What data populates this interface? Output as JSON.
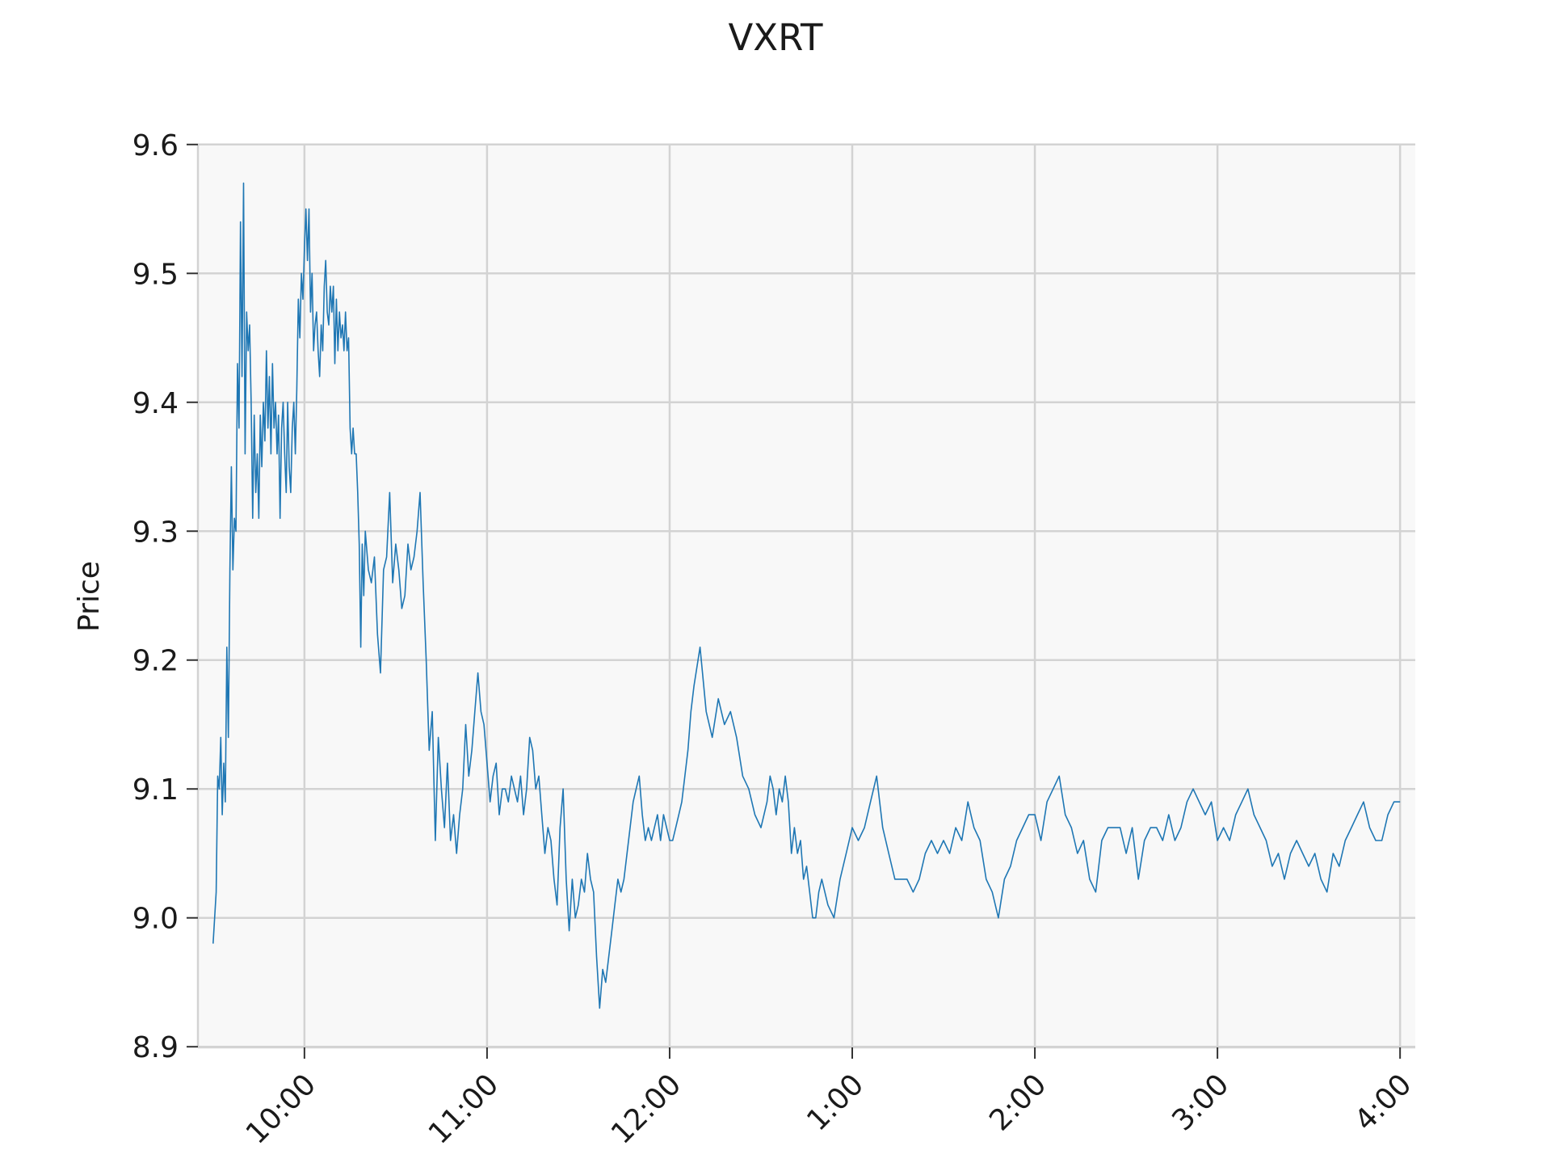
{
  "chart_data": {
    "type": "line",
    "title": "VXRT",
    "xlabel": "",
    "ylabel": "Price",
    "ylim": [
      8.9,
      9.6
    ],
    "yticks": [
      8.9,
      9.0,
      9.1,
      9.2,
      9.3,
      9.4,
      9.5,
      9.6
    ],
    "ytick_labels": [
      "8.9",
      "9.0",
      "9.1",
      "9.2",
      "9.3",
      "9.4",
      "9.5",
      "9.6"
    ],
    "x_unit": "minutes since 9:30 AM",
    "xlim": [
      -5,
      395
    ],
    "xticks": [
      30,
      90,
      150,
      210,
      270,
      330,
      390
    ],
    "xtick_labels": [
      "10:00",
      "11:00",
      "12:00",
      "1:00",
      "2:00",
      "3:00",
      "4:00"
    ],
    "grid": true,
    "colors": {
      "line": "#1f77b4",
      "plot_bg": "#f8f8f8",
      "grid": "#d3d3d3"
    },
    "series": [
      {
        "x": [
          0,
          1,
          1.5,
          2,
          2.5,
          3,
          3.5,
          4,
          4.5,
          5,
          5.5,
          6,
          6.5,
          7,
          7.5,
          8,
          8.5,
          9,
          9.5,
          10,
          10.5,
          11,
          11.5,
          12,
          12.5,
          13,
          13.5,
          14,
          14.5,
          15,
          15.5,
          16,
          16.5,
          17,
          17.5,
          18,
          18.5,
          19,
          19.5,
          20,
          20.5,
          21,
          21.5,
          22,
          22.5,
          23,
          23.5,
          24,
          24.5,
          25,
          25.5,
          26,
          26.5,
          27,
          27.5,
          28,
          28.5,
          29,
          29.5,
          30,
          30.5,
          31,
          31.5,
          32,
          32.5,
          33,
          33.5,
          34,
          34.5,
          35,
          35.5,
          36,
          36.5,
          37,
          37.5,
          38,
          38.5,
          39,
          39.5,
          40,
          40.5,
          41,
          41.5,
          42,
          42.5,
          43,
          43.5,
          44,
          44.5,
          45,
          45.5,
          46,
          46.5,
          47,
          47.5,
          48,
          48.5,
          49,
          49.5,
          50,
          51,
          52,
          53,
          54,
          55,
          56,
          57,
          58,
          59,
          60,
          61,
          62,
          63,
          64,
          65,
          66,
          67,
          68,
          69,
          70,
          71,
          72,
          73,
          74,
          75,
          76,
          77,
          78,
          79,
          80,
          81,
          82,
          83,
          84,
          85,
          86,
          87,
          88,
          89,
          90,
          91,
          92,
          93,
          94,
          95,
          96,
          97,
          98,
          99,
          100,
          101,
          102,
          103,
          104,
          105,
          106,
          107,
          108,
          109,
          110,
          111,
          112,
          113,
          114,
          115,
          116,
          117,
          118,
          119,
          120,
          121,
          122,
          123,
          124,
          125,
          126,
          127,
          128,
          129,
          130,
          131,
          132,
          133,
          134,
          135,
          136,
          137,
          138,
          139,
          140,
          141,
          142,
          143,
          144,
          145,
          146,
          147,
          148,
          149,
          150,
          151,
          152,
          153,
          154,
          155,
          156,
          157,
          158,
          160,
          162,
          164,
          166,
          168,
          170,
          172,
          174,
          176,
          178,
          180,
          182,
          183,
          184,
          185,
          186,
          187,
          188,
          189,
          190,
          191,
          192,
          193,
          194,
          195,
          196,
          197,
          198,
          199,
          200,
          202,
          204,
          206,
          208,
          210,
          212,
          214,
          216,
          218,
          220,
          222,
          224,
          226,
          228,
          230,
          232,
          234,
          236,
          238,
          240,
          242,
          244,
          246,
          248,
          250,
          252,
          254,
          256,
          258,
          260,
          262,
          264,
          266,
          268,
          270,
          272,
          274,
          276,
          278,
          280,
          282,
          284,
          286,
          288,
          290,
          292,
          294,
          296,
          298,
          300,
          302,
          304,
          306,
          308,
          310,
          312,
          314,
          316,
          318,
          320,
          322,
          324,
          326,
          328,
          330,
          332,
          334,
          336,
          338,
          340,
          342,
          344,
          346,
          348,
          350,
          352,
          354,
          356,
          358,
          360,
          362,
          364,
          366,
          368,
          370,
          372,
          374,
          376,
          378,
          380,
          382,
          384,
          386,
          388,
          390
        ],
        "y": [
          8.98,
          9.02,
          9.11,
          9.1,
          9.14,
          9.08,
          9.12,
          9.09,
          9.21,
          9.14,
          9.27,
          9.35,
          9.27,
          9.31,
          9.3,
          9.43,
          9.38,
          9.54,
          9.42,
          9.57,
          9.36,
          9.47,
          9.44,
          9.46,
          9.4,
          9.31,
          9.39,
          9.33,
          9.36,
          9.31,
          9.39,
          9.35,
          9.4,
          9.37,
          9.44,
          9.38,
          9.42,
          9.36,
          9.43,
          9.38,
          9.4,
          9.36,
          9.39,
          9.31,
          9.38,
          9.4,
          9.36,
          9.33,
          9.4,
          9.35,
          9.33,
          9.38,
          9.4,
          9.36,
          9.41,
          9.48,
          9.45,
          9.5,
          9.48,
          9.52,
          9.55,
          9.51,
          9.55,
          9.47,
          9.5,
          9.44,
          9.46,
          9.47,
          9.44,
          9.42,
          9.46,
          9.44,
          9.49,
          9.51,
          9.47,
          9.46,
          9.49,
          9.47,
          9.49,
          9.43,
          9.48,
          9.44,
          9.47,
          9.45,
          9.46,
          9.44,
          9.47,
          9.44,
          9.45,
          9.38,
          9.36,
          9.38,
          9.36,
          9.36,
          9.33,
          9.29,
          9.21,
          9.29,
          9.25,
          9.3,
          9.27,
          9.26,
          9.28,
          9.22,
          9.19,
          9.27,
          9.28,
          9.33,
          9.26,
          9.29,
          9.27,
          9.24,
          9.25,
          9.29,
          9.27,
          9.28,
          9.3,
          9.33,
          9.26,
          9.2,
          9.13,
          9.16,
          9.06,
          9.14,
          9.1,
          9.07,
          9.12,
          9.06,
          9.08,
          9.05,
          9.08,
          9.1,
          9.15,
          9.11,
          9.13,
          9.16,
          9.19,
          9.16,
          9.15,
          9.12,
          9.09,
          9.11,
          9.12,
          9.08,
          9.1,
          9.1,
          9.09,
          9.11,
          9.1,
          9.09,
          9.11,
          9.08,
          9.1,
          9.14,
          9.13,
          9.1,
          9.11,
          9.08,
          9.05,
          9.07,
          9.06,
          9.03,
          9.01,
          9.07,
          9.1,
          9.03,
          8.99,
          9.03,
          9.0,
          9.01,
          9.03,
          9.02,
          9.05,
          9.03,
          9.02,
          8.97,
          8.93,
          8.96,
          8.95,
          8.97,
          8.99,
          9.01,
          9.03,
          9.02,
          9.03,
          9.05,
          9.07,
          9.09,
          9.1,
          9.11,
          9.08,
          9.06,
          9.07,
          9.06,
          9.07,
          9.08,
          9.06,
          9.08,
          9.07,
          9.06,
          9.06,
          9.07,
          9.08,
          9.09,
          9.11,
          9.13,
          9.16,
          9.18,
          9.21,
          9.16,
          9.14,
          9.17,
          9.15,
          9.16,
          9.14,
          9.11,
          9.1,
          9.08,
          9.07,
          9.09,
          9.11,
          9.1,
          9.08,
          9.1,
          9.09,
          9.11,
          9.09,
          9.05,
          9.07,
          9.05,
          9.06,
          9.03,
          9.04,
          9.02,
          9.0,
          9.0,
          9.02,
          9.03,
          9.01,
          9.0,
          9.03,
          9.05,
          9.07,
          9.06,
          9.07,
          9.09,
          9.11,
          9.07,
          9.05,
          9.03,
          9.03,
          9.03,
          9.02,
          9.03,
          9.05,
          9.06,
          9.05,
          9.06,
          9.05,
          9.07,
          9.06,
          9.09,
          9.07,
          9.06,
          9.03,
          9.02,
          9.0,
          9.03,
          9.04,
          9.06,
          9.07,
          9.08,
          9.08,
          9.06,
          9.09,
          9.1,
          9.11,
          9.08,
          9.07,
          9.05,
          9.06,
          9.03,
          9.02,
          9.06,
          9.07,
          9.07,
          9.07,
          9.05,
          9.07,
          9.03,
          9.06,
          9.07,
          9.07,
          9.06,
          9.08,
          9.06,
          9.07,
          9.09,
          9.1,
          9.09,
          9.08,
          9.09,
          9.06,
          9.07,
          9.06,
          9.08,
          9.09,
          9.1,
          9.08,
          9.07,
          9.06,
          9.04,
          9.05,
          9.03,
          9.05,
          9.06,
          9.05,
          9.04,
          9.05,
          9.03,
          9.02,
          9.05,
          9.04,
          9.06,
          9.07,
          9.08,
          9.09,
          9.07,
          9.06,
          9.06,
          9.08,
          9.09,
          9.09
        ]
      }
    ]
  }
}
